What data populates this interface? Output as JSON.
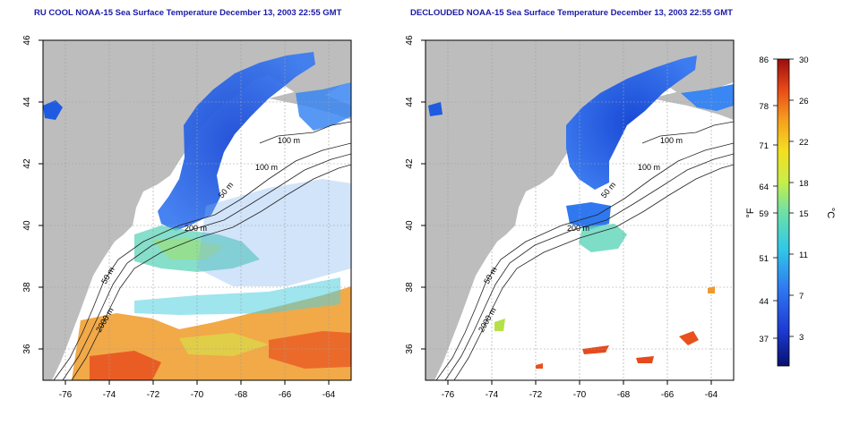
{
  "panels": [
    {
      "title": "RU COOL NOAA-15 Sea Surface Temperature December 13, 2003 22:55 GMT"
    },
    {
      "title": "DECLOUDED NOAA-15 Sea Surface Temperature December 13, 2003 22:55 GMT"
    }
  ],
  "axes": {
    "lon_ticks": [
      "-76",
      "-74",
      "-72",
      "-70",
      "-68",
      "-66",
      "-64"
    ],
    "lat_ticks": [
      "46",
      "44",
      "42",
      "40",
      "38",
      "36"
    ],
    "lon_range": [
      -77,
      -63
    ],
    "lat_range": [
      35,
      46
    ]
  },
  "isobaths": [
    "100 m",
    "100 m",
    "50 m",
    "200 m",
    "50 m",
    "2000 m"
  ],
  "colorbar": {
    "fahrenheit_ticks": [
      "86",
      "78",
      "71",
      "64",
      "59",
      "51",
      "44",
      "37"
    ],
    "celsius_ticks": [
      "30",
      "26",
      "22",
      "18",
      "15",
      "11",
      "7",
      "3"
    ],
    "fahrenheit_unit": "°F",
    "celsius_unit": "°C",
    "range_celsius": [
      0,
      30
    ]
  },
  "colors": {
    "land": "#bdbdbd",
    "title": "#1a1aa8",
    "grid": "#a0a0a0",
    "cold": "#1e4fd8",
    "warm": "#e0301a"
  }
}
